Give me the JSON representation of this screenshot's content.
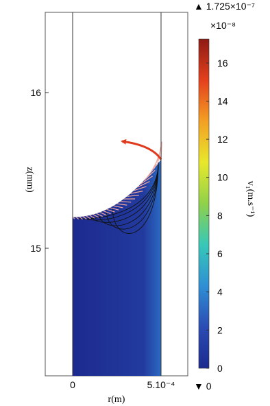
{
  "chart_data": {
    "type": "heatmap",
    "title": "",
    "xlabel": "r(m)",
    "ylabel": "z(mm)",
    "x_ticks": [
      {
        "value": 0,
        "label": "0"
      },
      {
        "value": 0.0005,
        "label": "5.10⁻⁴"
      }
    ],
    "y_ticks": [
      {
        "value": 15,
        "label": "15"
      },
      {
        "value": 16,
        "label": "16"
      }
    ],
    "xlim": [
      0,
      0.0005
    ],
    "ylim": [
      14.2,
      16.5
    ],
    "interface_z": {
      "at_axis": 15.2,
      "at_wall": 15.57
    },
    "colorbar": {
      "label": "v₁(m.s⁻¹)",
      "multiplier": "×10⁻⁸",
      "max_marker": "▲ 1.725×10⁻⁷",
      "min_marker": "▼ 0",
      "range": [
        0,
        17.25
      ],
      "ticks": [
        0,
        2,
        4,
        6,
        8,
        10,
        12,
        14,
        16
      ],
      "colormap": [
        "#1c2a8f",
        "#2b4cb3",
        "#2f8fd4",
        "#37c8b8",
        "#8fd14a",
        "#e8e82c",
        "#f3a023",
        "#e4401d",
        "#8e1b14"
      ]
    },
    "field_color": "#1e2f94",
    "arrow_color": "#e03a1c",
    "streamline_color": "#111111"
  }
}
